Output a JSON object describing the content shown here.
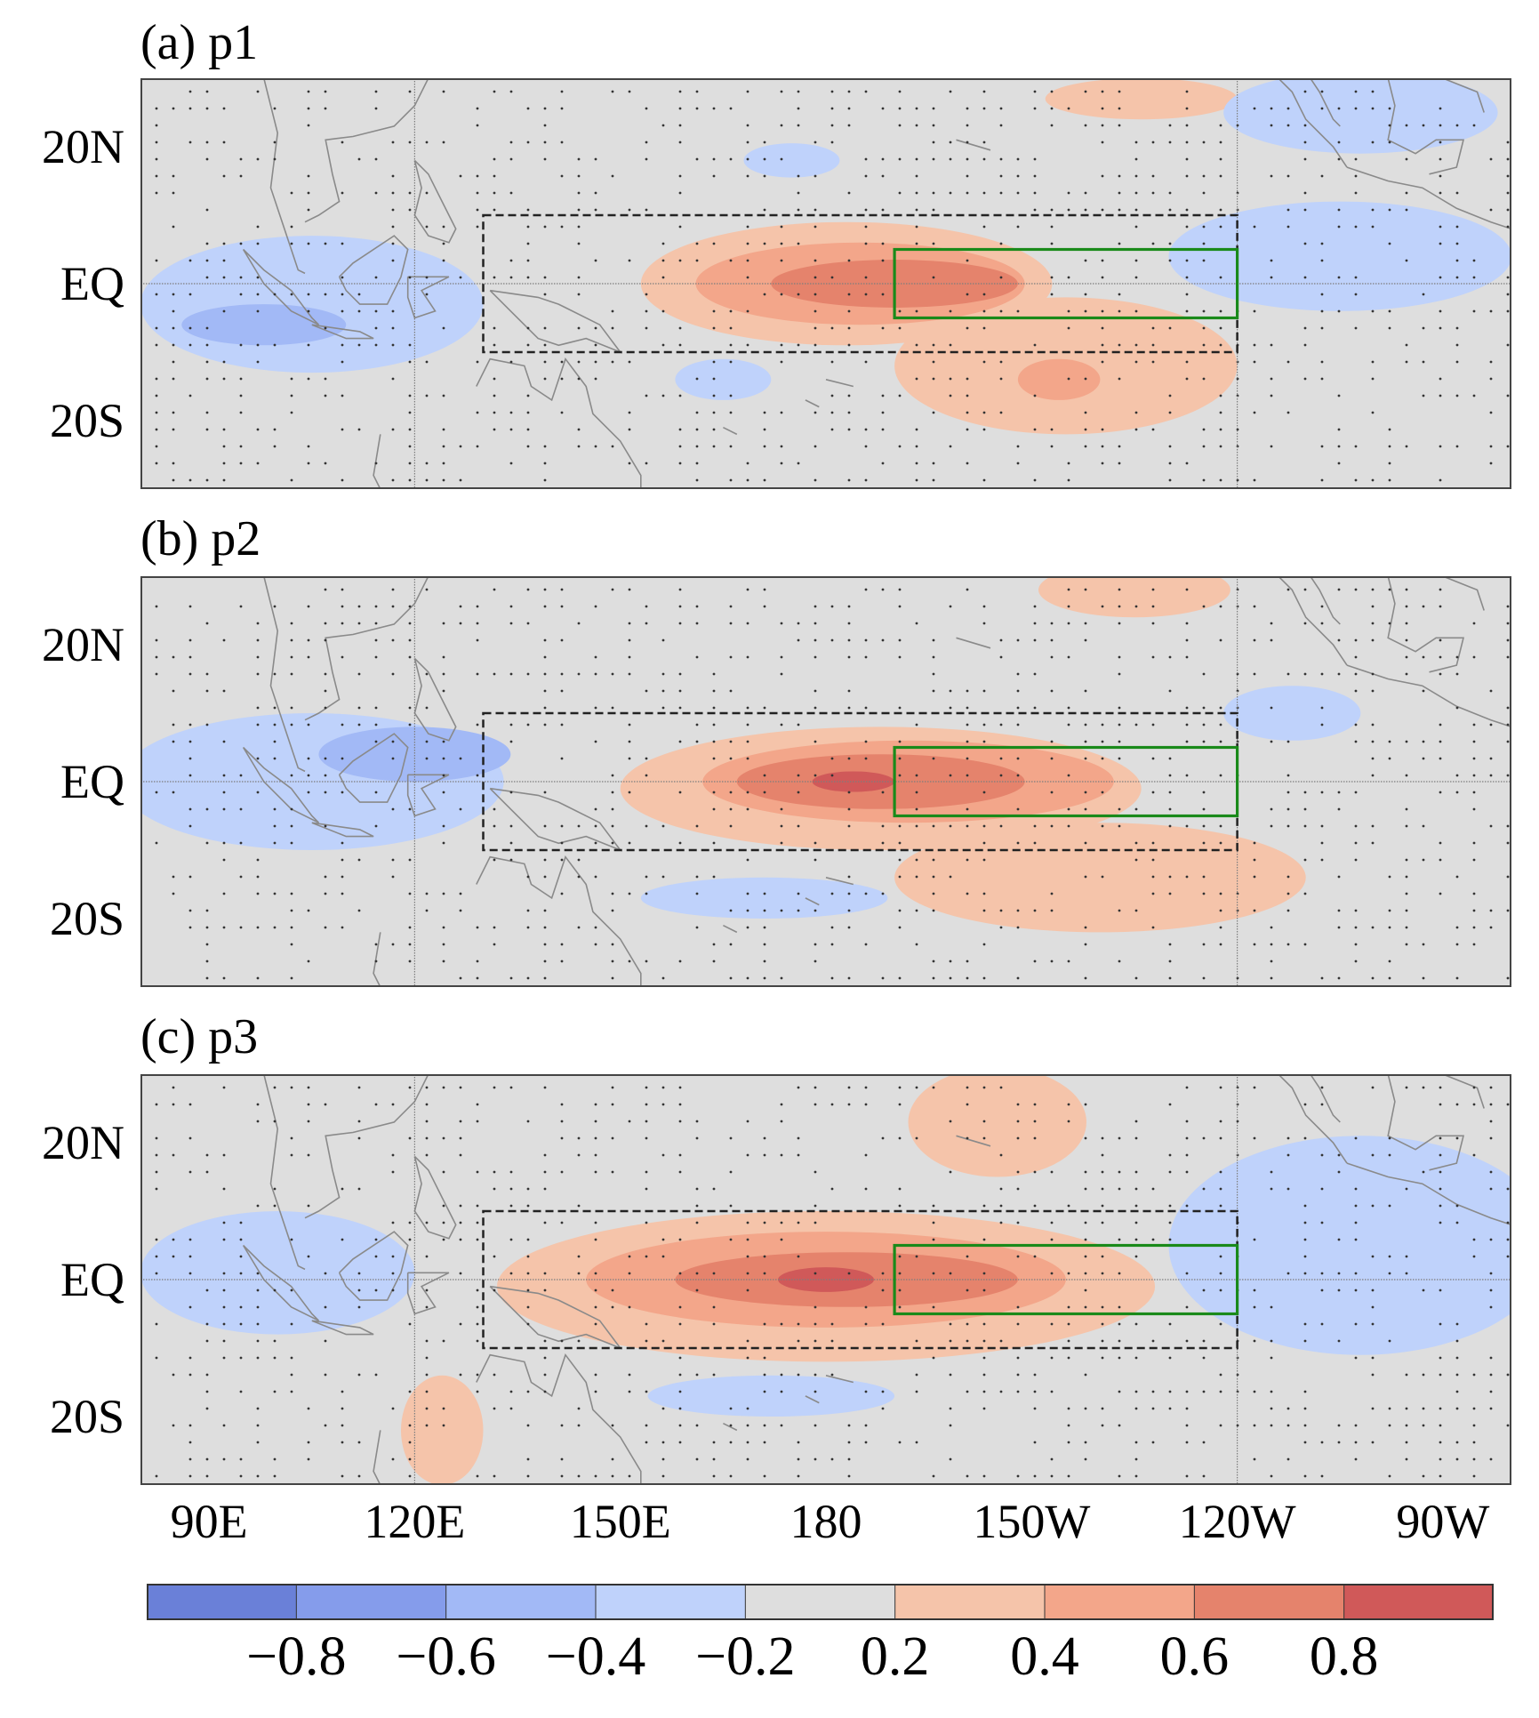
{
  "chart_data": [
    {
      "type": "heatmap",
      "panel": "a",
      "title": "(a) p1",
      "lon_range": [
        80,
        280
      ],
      "lat_range": [
        -30,
        30
      ],
      "features": [
        {
          "kind": "warm",
          "lon": 183,
          "lat": 0,
          "rlon": 30,
          "rlat": 9,
          "value": 0.3
        },
        {
          "kind": "warm",
          "lon": 215,
          "lat": -12,
          "rlon": 25,
          "rlat": 10,
          "value": 0.3
        },
        {
          "kind": "warm",
          "lon": 185,
          "lat": 0,
          "rlon": 24,
          "rlat": 6,
          "value": 0.5
        },
        {
          "kind": "warm",
          "lon": 190,
          "lat": 0,
          "rlon": 18,
          "rlat": 3.5,
          "value": 0.7
        },
        {
          "kind": "warm",
          "lon": 214,
          "lat": -14,
          "rlon": 6,
          "rlat": 3,
          "value": 0.5
        },
        {
          "kind": "warm",
          "lon": 226,
          "lat": 27,
          "rlon": 14,
          "rlat": 3,
          "value": 0.3
        },
        {
          "kind": "cold",
          "lon": 105,
          "lat": -3,
          "rlon": 25,
          "rlat": 10,
          "value": -0.3
        },
        {
          "kind": "cold",
          "lon": 98,
          "lat": -6,
          "rlon": 12,
          "rlat": 3,
          "value": -0.5
        },
        {
          "kind": "cold",
          "lon": 175,
          "lat": 18,
          "rlon": 7,
          "rlat": 2.5,
          "value": -0.3
        },
        {
          "kind": "cold",
          "lon": 165,
          "lat": -14,
          "rlon": 7,
          "rlat": 3,
          "value": -0.3
        },
        {
          "kind": "cold",
          "lon": 255,
          "lat": 4,
          "rlon": 25,
          "rlat": 8,
          "value": -0.3
        },
        {
          "kind": "cold",
          "lon": 258,
          "lat": 25,
          "rlon": 20,
          "rlat": 6,
          "value": -0.3
        }
      ],
      "nino34_box": {
        "lon": [
          190,
          240
        ],
        "lat": [
          -5,
          5
        ]
      },
      "dashed_box": {
        "lon": [
          130,
          240
        ],
        "lat": [
          -10,
          10
        ]
      }
    },
    {
      "type": "heatmap",
      "panel": "b",
      "title": "(b) p2",
      "lon_range": [
        80,
        280
      ],
      "lat_range": [
        -30,
        30
      ],
      "features": [
        {
          "kind": "warm",
          "lon": 188,
          "lat": -1,
          "rlon": 38,
          "rlat": 9,
          "value": 0.3
        },
        {
          "kind": "warm",
          "lon": 220,
          "lat": -14,
          "rlon": 30,
          "rlat": 8,
          "value": 0.3
        },
        {
          "kind": "warm",
          "lon": 192,
          "lat": 0,
          "rlon": 30,
          "rlat": 6,
          "value": 0.5
        },
        {
          "kind": "warm",
          "lon": 188,
          "lat": 0,
          "rlon": 21,
          "rlat": 4,
          "value": 0.7
        },
        {
          "kind": "warm",
          "lon": 184,
          "lat": 0,
          "rlon": 6,
          "rlat": 1.5,
          "value": 0.9
        },
        {
          "kind": "warm",
          "lon": 225,
          "lat": 28,
          "rlon": 14,
          "rlat": 4,
          "value": 0.3
        },
        {
          "kind": "cold",
          "lon": 105,
          "lat": 0,
          "rlon": 28,
          "rlat": 10,
          "value": -0.3
        },
        {
          "kind": "cold",
          "lon": 120,
          "lat": 4,
          "rlon": 14,
          "rlat": 4,
          "value": -0.5
        },
        {
          "kind": "cold",
          "lon": 171,
          "lat": -17,
          "rlon": 18,
          "rlat": 3,
          "value": -0.3
        },
        {
          "kind": "cold",
          "lon": 248,
          "lat": 10,
          "rlon": 10,
          "rlat": 4,
          "value": -0.3
        }
      ],
      "nino34_box": {
        "lon": [
          190,
          240
        ],
        "lat": [
          -5,
          5
        ]
      },
      "dashed_box": {
        "lon": [
          130,
          240
        ],
        "lat": [
          -10,
          10
        ]
      }
    },
    {
      "type": "heatmap",
      "panel": "c",
      "title": "(c) p3",
      "lon_range": [
        80,
        280
      ],
      "lat_range": [
        -30,
        30
      ],
      "features": [
        {
          "kind": "warm",
          "lon": 180,
          "lat": -1,
          "rlon": 48,
          "rlat": 11,
          "value": 0.3
        },
        {
          "kind": "warm",
          "lon": 180,
          "lat": 0,
          "rlon": 35,
          "rlat": 7,
          "value": 0.5
        },
        {
          "kind": "warm",
          "lon": 183,
          "lat": 0,
          "rlon": 25,
          "rlat": 4,
          "value": 0.7
        },
        {
          "kind": "warm",
          "lon": 180,
          "lat": 0,
          "rlon": 7,
          "rlat": 1.8,
          "value": 0.9
        },
        {
          "kind": "warm",
          "lon": 205,
          "lat": 23,
          "rlon": 13,
          "rlat": 8,
          "value": 0.3
        },
        {
          "kind": "warm",
          "lon": 124,
          "lat": -22,
          "rlon": 6,
          "rlat": 8,
          "value": 0.3
        },
        {
          "kind": "cold",
          "lon": 100,
          "lat": 1,
          "rlon": 20,
          "rlat": 9,
          "value": -0.3
        },
        {
          "kind": "cold",
          "lon": 258,
          "lat": 5,
          "rlon": 28,
          "rlat": 16,
          "value": -0.3
        },
        {
          "kind": "cold",
          "lon": 172,
          "lat": -17,
          "rlon": 18,
          "rlat": 3,
          "value": -0.3
        }
      ],
      "nino34_box": {
        "lon": [
          190,
          240
        ],
        "lat": [
          -5,
          5
        ]
      },
      "dashed_box": {
        "lon": [
          130,
          240
        ],
        "lat": [
          -10,
          10
        ]
      }
    }
  ],
  "axes": {
    "lat_ticks": [
      {
        "label": "20N",
        "lat": 20
      },
      {
        "label": "EQ",
        "lat": 0
      },
      {
        "label": "20S",
        "lat": -20
      }
    ],
    "lon_ticks": [
      {
        "label": "90E",
        "lon": 90
      },
      {
        "label": "120E",
        "lon": 120
      },
      {
        "label": "150E",
        "lon": 150
      },
      {
        "label": "180",
        "lon": 180
      },
      {
        "label": "150W",
        "lon": 210
      },
      {
        "label": "120W",
        "lon": 240
      },
      {
        "label": "90W",
        "lon": 270
      }
    ]
  },
  "colorbar": {
    "bins": [
      -1.0,
      -0.8,
      -0.6,
      -0.4,
      -0.2,
      0.2,
      0.4,
      0.6,
      0.8,
      1.0
    ],
    "colors": [
      "#6a80d8",
      "#859ceb",
      "#a2b9f6",
      "#bfd2fb",
      "#dedede",
      "#f5c4aa",
      "#f3a68a",
      "#e5836c",
      "#d05959"
    ],
    "tick_labels": [
      {
        "label": "−0.8",
        "value": -0.8
      },
      {
        "label": "−0.6",
        "value": -0.6
      },
      {
        "label": "−0.4",
        "value": -0.4
      },
      {
        "label": "−0.2",
        "value": -0.2
      },
      {
        "label": "0.2",
        "value": 0.2
      },
      {
        "label": "0.4",
        "value": 0.4
      },
      {
        "label": "0.6",
        "value": 0.6
      },
      {
        "label": "0.8",
        "value": 0.8
      }
    ]
  },
  "colors": {
    "background": "#dedede",
    "nino34_box": "#1a8a1a",
    "dashed_box": "#222222",
    "coastline": "#8a8a8a",
    "stipple": "#333333"
  }
}
